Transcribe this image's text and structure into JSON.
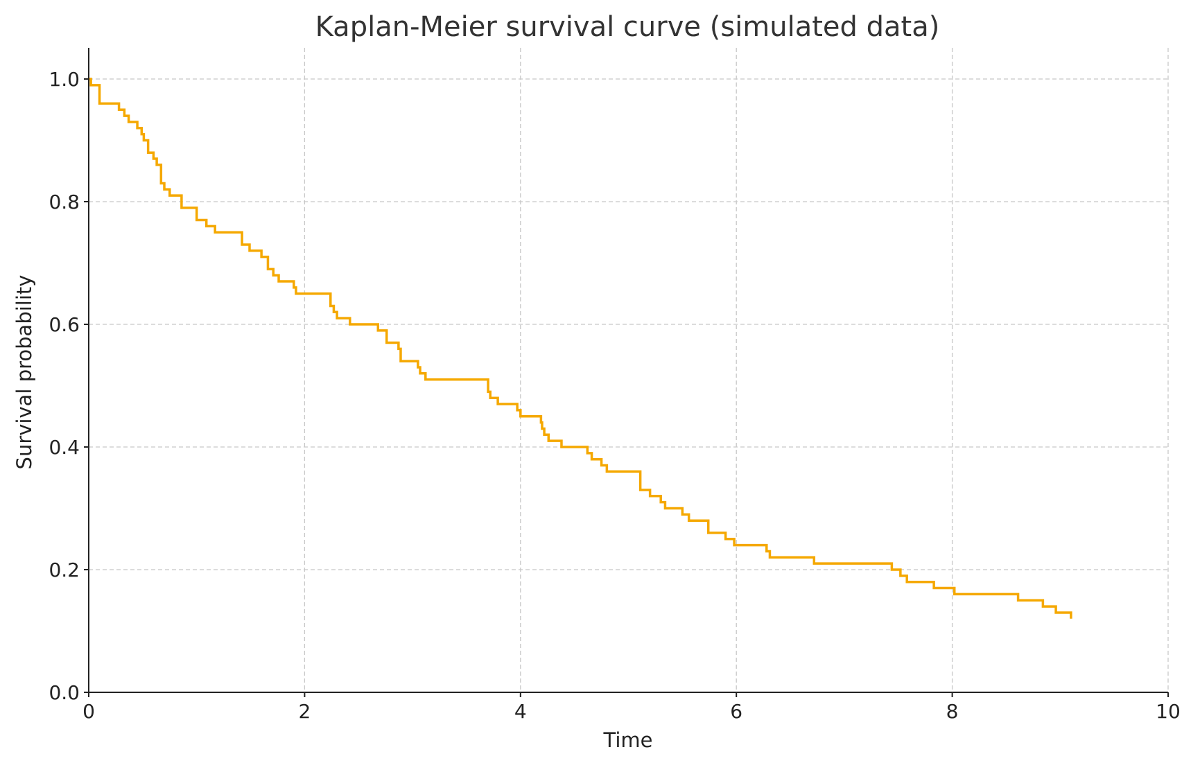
{
  "chart_data": {
    "type": "line",
    "title": "Kaplan-Meier survival curve (simulated data)",
    "xlabel": "Time",
    "ylabel": "Survival probability",
    "xlim": [
      0,
      10
    ],
    "ylim": [
      0,
      1.05
    ],
    "x_ticks": [
      "0",
      "2",
      "4",
      "6",
      "8",
      "10"
    ],
    "y_ticks": [
      "0.0",
      "0.2",
      "0.4",
      "0.6",
      "0.8",
      "1.0"
    ],
    "grid": true,
    "step": "post",
    "line_color": "#f5a800",
    "series": [
      {
        "x": [
          0,
          0.02,
          0.1,
          0.28,
          0.33,
          0.37,
          0.45,
          0.49,
          0.51,
          0.55,
          0.6,
          0.63,
          0.67,
          0.7,
          0.75,
          0.86,
          1.0,
          1.09,
          1.17,
          1.42,
          1.49,
          1.6,
          1.66,
          1.71,
          1.76,
          1.9,
          1.92,
          2.24,
          2.27,
          2.3,
          2.42,
          2.68,
          2.76,
          2.87,
          2.89,
          3.05,
          3.07,
          3.12,
          3.7,
          3.72,
          3.79,
          3.97,
          4.0,
          4.19,
          4.2,
          4.22,
          4.26,
          4.38,
          4.62,
          4.66,
          4.75,
          4.8,
          5.11,
          5.2,
          5.3,
          5.34,
          5.5,
          5.56,
          5.74,
          5.9,
          5.98,
          6.28,
          6.31,
          6.72,
          7.44,
          7.52,
          7.58,
          7.83,
          8.02,
          8.61,
          8.84,
          8.96,
          9.1
        ],
        "y": [
          1.0,
          0.99,
          0.96,
          0.95,
          0.94,
          0.93,
          0.92,
          0.91,
          0.9,
          0.88,
          0.87,
          0.86,
          0.83,
          0.82,
          0.81,
          0.79,
          0.77,
          0.76,
          0.75,
          0.73,
          0.72,
          0.71,
          0.69,
          0.68,
          0.67,
          0.66,
          0.65,
          0.63,
          0.62,
          0.61,
          0.6,
          0.59,
          0.57,
          0.56,
          0.54,
          0.53,
          0.52,
          0.51,
          0.49,
          0.48,
          0.47,
          0.46,
          0.45,
          0.44,
          0.43,
          0.42,
          0.41,
          0.4,
          0.39,
          0.38,
          0.37,
          0.36,
          0.33,
          0.32,
          0.31,
          0.3,
          0.29,
          0.28,
          0.26,
          0.25,
          0.24,
          0.23,
          0.22,
          0.21,
          0.2,
          0.19,
          0.18,
          0.17,
          0.16,
          0.15,
          0.14,
          0.13,
          0.12
        ]
      }
    ]
  }
}
